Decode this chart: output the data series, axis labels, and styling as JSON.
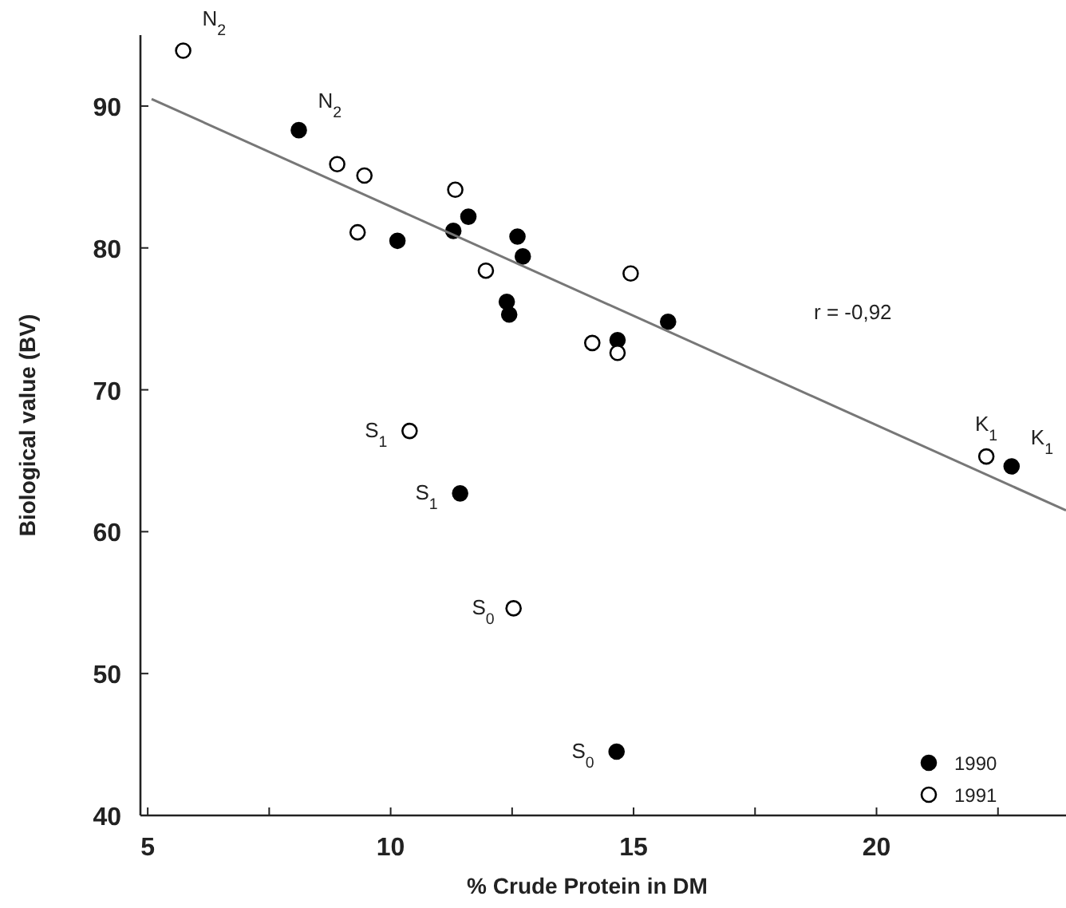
{
  "chart_data": {
    "type": "scatter",
    "xlabel": "% Crude Protein in DM",
    "ylabel": "Biological value (BV)",
    "xlim": [
      4.85,
      23.9
    ],
    "ylim": [
      40,
      95
    ],
    "xticks": [
      5,
      {
        "value": 7.5,
        "label": null
      },
      10,
      {
        "value": 12.5,
        "label": null
      },
      15,
      {
        "value": 17.5,
        "label": null
      },
      20,
      {
        "value": 22.5,
        "label": null
      }
    ],
    "yticks": [
      40,
      50,
      60,
      70,
      80,
      90
    ],
    "legend": "bottom right",
    "grid": false,
    "series": [
      {
        "name": "1990",
        "color": "#000000",
        "marker": "circle",
        "x": [
          8.11,
          10.14,
          11.29,
          11.6,
          12.61,
          12.72,
          12.39,
          12.44,
          14.67,
          15.71,
          11.43,
          14.65,
          22.78
        ],
        "values": [
          88.3,
          80.5,
          81.2,
          82.2,
          80.8,
          79.4,
          76.2,
          75.3,
          73.5,
          74.8,
          62.7,
          44.5,
          64.6
        ]
      },
      {
        "name": "1991",
        "color": "#ffffff",
        "marker": "circle",
        "x": [
          5.73,
          8.9,
          9.46,
          9.32,
          11.33,
          11.96,
          10.39,
          14.94,
          14.15,
          14.67,
          12.53,
          22.26
        ],
        "values": [
          93.9,
          85.9,
          85.1,
          81.1,
          84.1,
          78.4,
          67.1,
          78.2,
          73.3,
          72.6,
          54.6,
          65.3
        ]
      },
      {
        "type": "line",
        "marker": "none",
        "color": "#777777",
        "x": [
          5.08,
          23.9
        ],
        "values": [
          90.5,
          61.5
        ]
      }
    ],
    "annotations": [
      {
        "text": "N$_{2}$",
        "x": 5.73,
        "y": 93.9
      },
      {
        "text": "N$_{2}$",
        "x": 8.11,
        "y": 88.3
      },
      {
        "text": "S$_{1}$",
        "x": 10.39,
        "y": 67.1
      },
      {
        "text": "S$_{1}$",
        "x": 11.43,
        "y": 62.7
      },
      {
        "text": "S$_{0}$",
        "x": 12.53,
        "y": 54.6
      },
      {
        "text": "S$_{0}$",
        "x": 14.65,
        "y": 44.5
      },
      {
        "text": "K$_{1}$",
        "x": 22.26,
        "y": 65.3
      },
      {
        "text": "K$_{1}$",
        "x": 22.78,
        "y": 64.6
      },
      "r = -0,92"
    ]
  }
}
